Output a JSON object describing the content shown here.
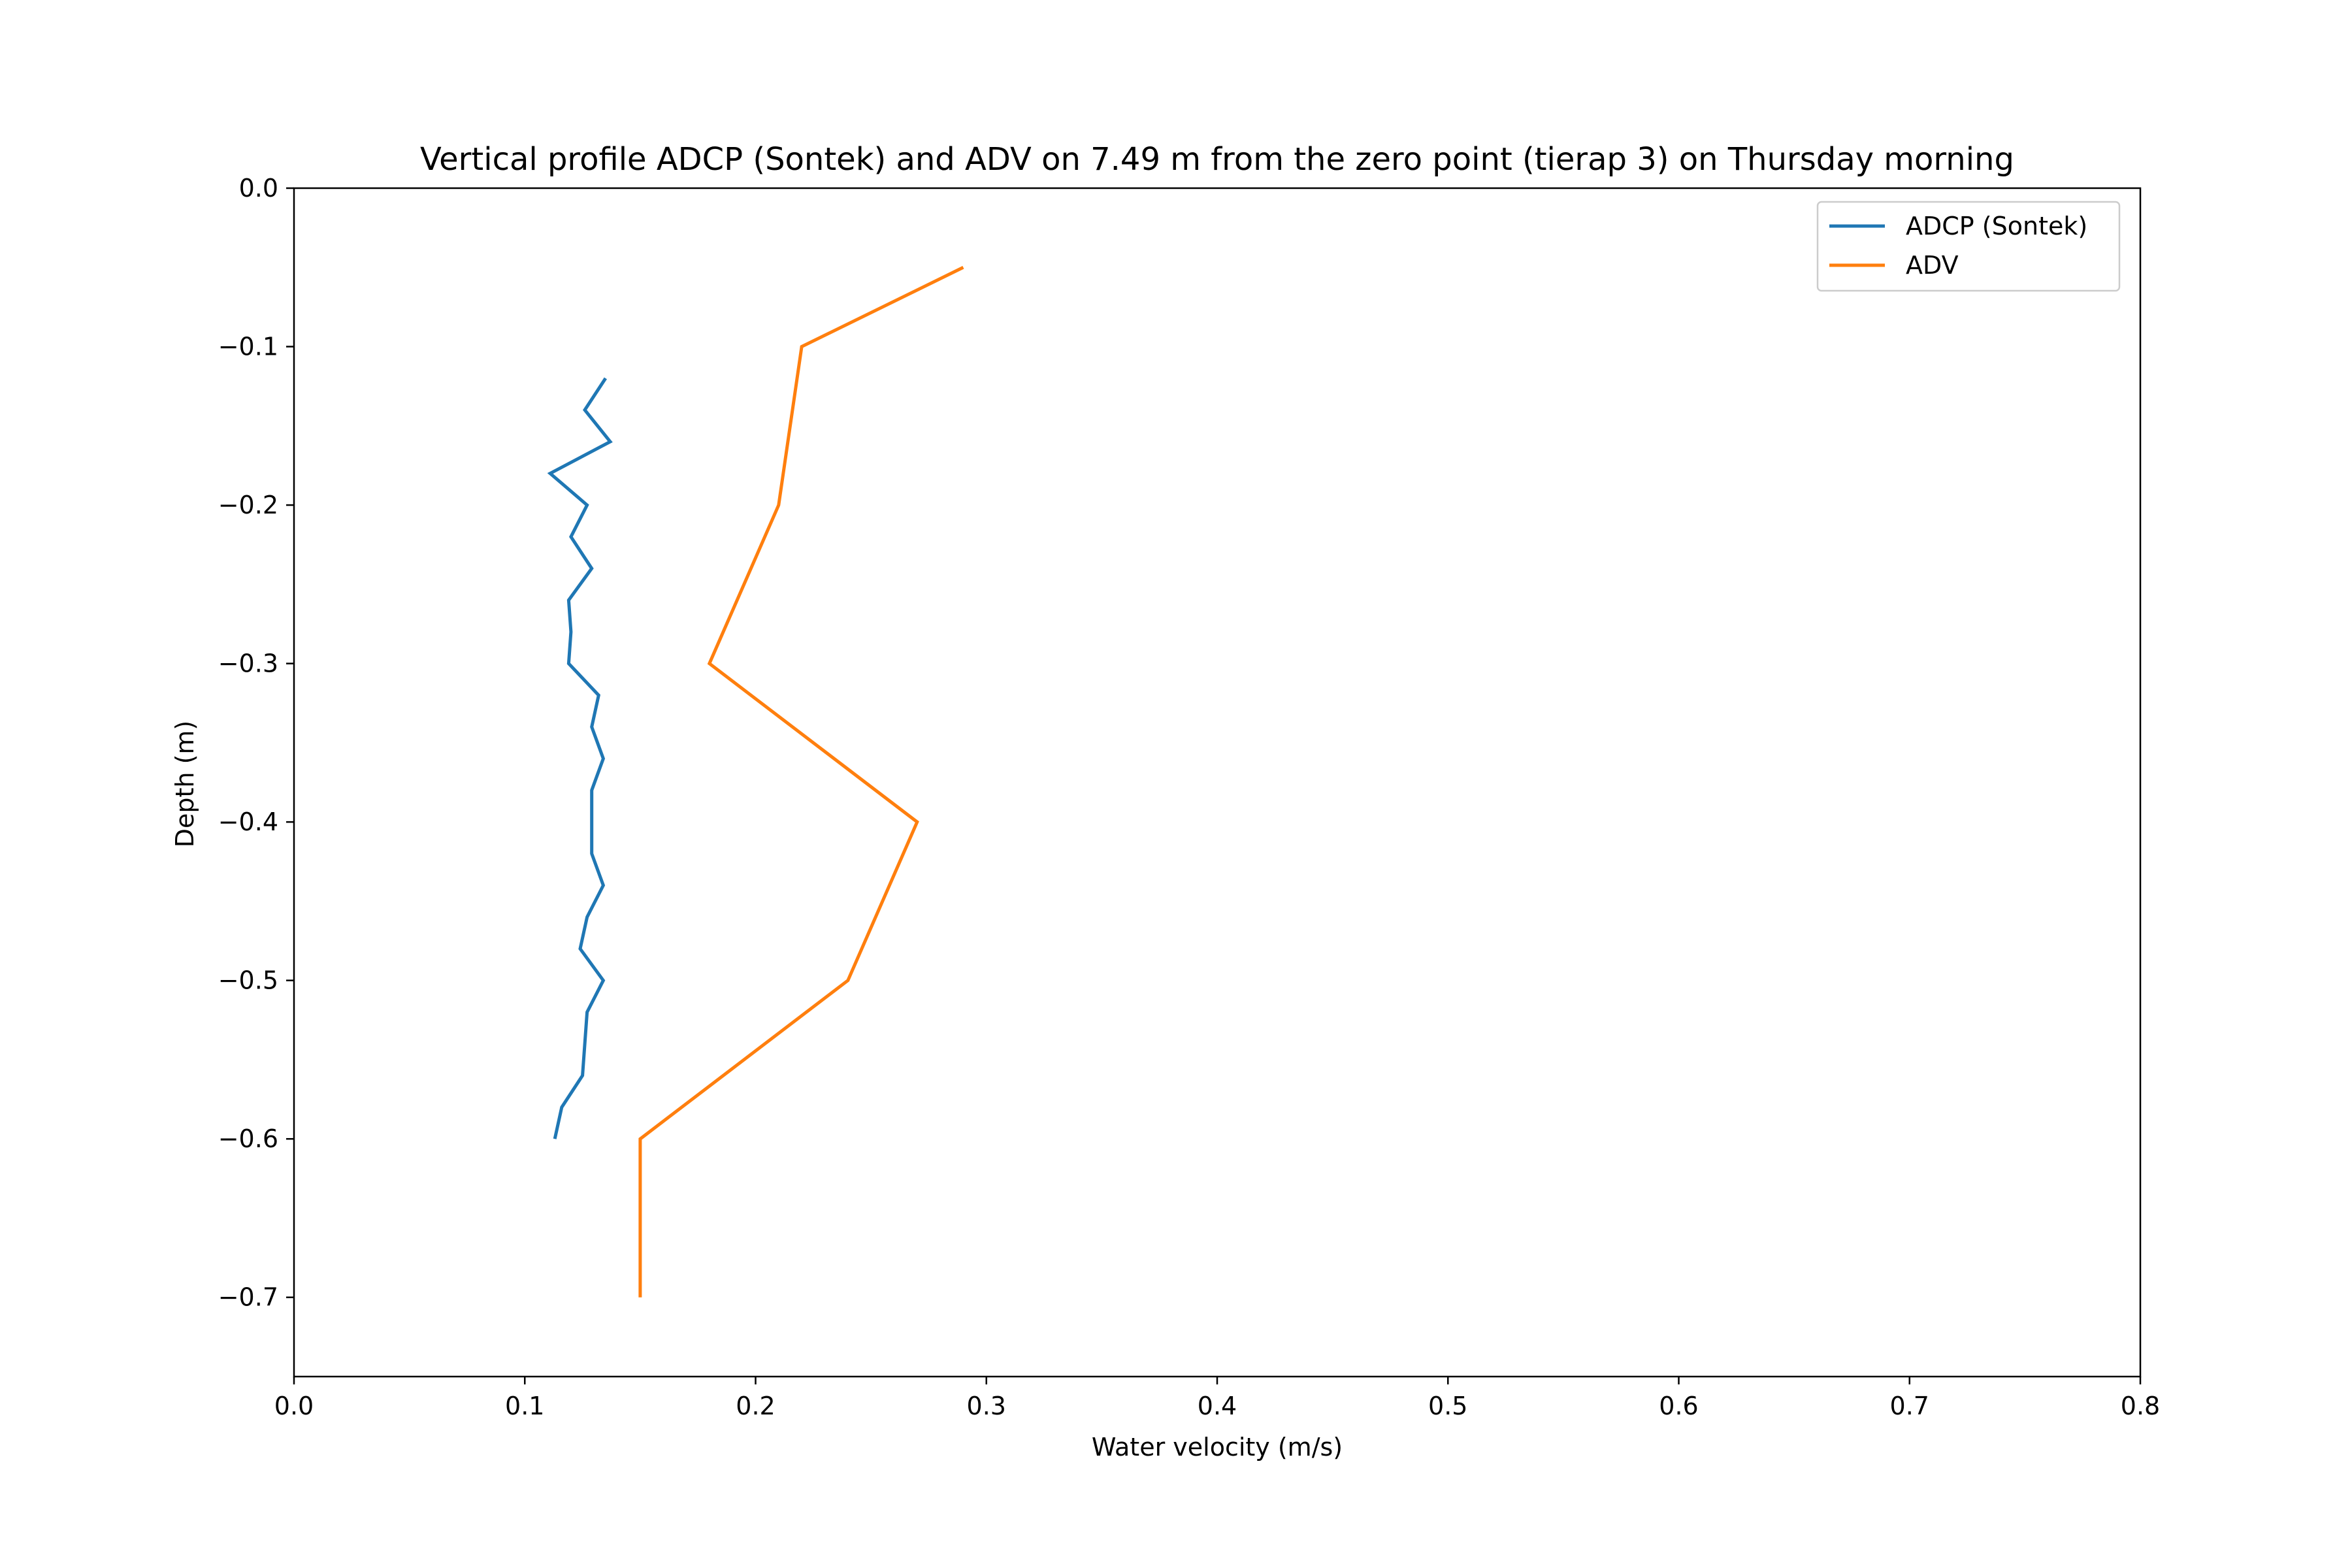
{
  "chart_data": {
    "type": "line",
    "title": "Vertical profile ADCP (Sontek) and ADV on 7.49 m from the zero point (tierap 3) on Thursday morning",
    "xlabel": "Water velocity (m/s)",
    "ylabel": "Depth (m)",
    "xlim": [
      0.0,
      0.8
    ],
    "ylim": [
      -0.75,
      0.0
    ],
    "x_ticks": [
      "0.0",
      "0.1",
      "0.2",
      "0.3",
      "0.4",
      "0.5",
      "0.6",
      "0.7",
      "0.8"
    ],
    "y_ticks": [
      "0.0",
      "−0.1",
      "−0.2",
      "−0.3",
      "−0.4",
      "−0.5",
      "−0.6",
      "−0.7"
    ],
    "grid": false,
    "legend_position": "top-right",
    "series": [
      {
        "name": "ADCP (Sontek)",
        "color": "#1f77b4",
        "x": [
          0.135,
          0.126,
          0.137,
          0.111,
          0.127,
          0.12,
          0.129,
          0.119,
          0.12,
          0.119,
          0.132,
          0.129,
          0.134,
          0.129,
          0.129,
          0.129,
          0.134,
          0.127,
          0.124,
          0.134,
          0.127,
          0.125,
          0.116,
          0.113
        ],
        "y": [
          -0.12,
          -0.14,
          -0.16,
          -0.18,
          -0.2,
          -0.22,
          -0.24,
          -0.26,
          -0.28,
          -0.3,
          -0.32,
          -0.34,
          -0.36,
          -0.38,
          -0.4,
          -0.42,
          -0.44,
          -0.46,
          -0.48,
          -0.5,
          -0.52,
          -0.56,
          -0.58,
          -0.6
        ]
      },
      {
        "name": "ADV",
        "color": "#ff7f0e",
        "x": [
          0.29,
          0.22,
          0.21,
          0.18,
          0.27,
          0.24,
          0.15,
          0.15
        ],
        "y": [
          -0.05,
          -0.1,
          -0.2,
          -0.3,
          -0.4,
          -0.5,
          -0.6,
          -0.7
        ]
      }
    ]
  }
}
